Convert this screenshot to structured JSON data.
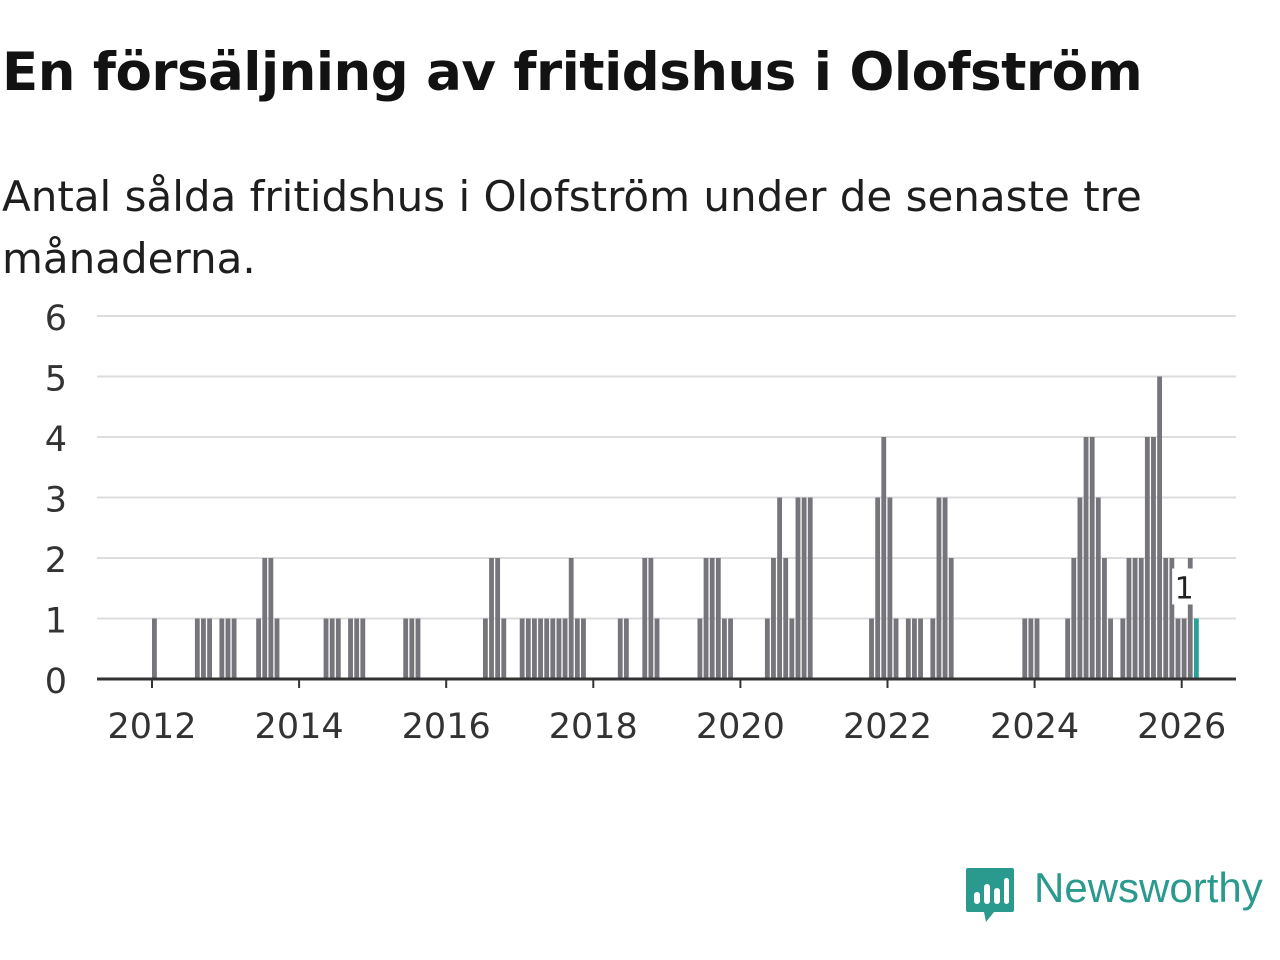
{
  "title": "En försäljning av fritidshus i Olofström",
  "subtitle": "Antal sålda fritidshus i Olofström under de senaste tre månaderna.",
  "brand": {
    "name": "Newsworthy",
    "color": "#2b9a8e",
    "icon": "newsworthy-logo-icon"
  },
  "colors": {
    "bar": "#76757c",
    "highlight": "#2aa198",
    "grid": "#dddddd",
    "axis": "#333333",
    "text": "#333333"
  },
  "chart_data": {
    "type": "bar",
    "title": "En försäljning av fritidshus i Olofström",
    "xlabel": "",
    "ylabel": "",
    "ylim": [
      0,
      6
    ],
    "yticks": [
      0,
      1,
      2,
      3,
      4,
      5,
      6
    ],
    "xticks": [
      "2012",
      "2014",
      "2016",
      "2018",
      "2020",
      "2022",
      "2024",
      "2026"
    ],
    "grid": true,
    "legend": "none",
    "x_unit": "month",
    "series": [
      {
        "name": "Sålda fritidshus",
        "start": "2011-01",
        "values": [
          0,
          0,
          0,
          0,
          0,
          0,
          0,
          0,
          0,
          0,
          0,
          0,
          1,
          0,
          0,
          0,
          0,
          0,
          0,
          1,
          1,
          1,
          0,
          1,
          1,
          1,
          0,
          0,
          0,
          1,
          2,
          2,
          1,
          0,
          0,
          0,
          0,
          0,
          0,
          0,
          1,
          1,
          1,
          0,
          1,
          1,
          1,
          0,
          0,
          0,
          0,
          0,
          0,
          1,
          1,
          1,
          0,
          0,
          0,
          0,
          0,
          0,
          0,
          0,
          0,
          0,
          1,
          2,
          2,
          1,
          0,
          0,
          1,
          1,
          1,
          1,
          1,
          1,
          1,
          1,
          2,
          1,
          1,
          0,
          0,
          0,
          0,
          0,
          1,
          1,
          0,
          0,
          2,
          2,
          1,
          0,
          0,
          0,
          0,
          0,
          0,
          1,
          2,
          2,
          2,
          1,
          1,
          0,
          0,
          0,
          0,
          0,
          1,
          2,
          3,
          2,
          1,
          3,
          3,
          3,
          0,
          0,
          0,
          0,
          0,
          0,
          0,
          0,
          0,
          1,
          3,
          4,
          3,
          1,
          0,
          1,
          1,
          1,
          0,
          1,
          3,
          3,
          2,
          0,
          0,
          0,
          0,
          0,
          0,
          0,
          0,
          0,
          0,
          0,
          1,
          1,
          1,
          0,
          0,
          0,
          0,
          1,
          2,
          3,
          4,
          4,
          3,
          2,
          1,
          0,
          1,
          2,
          2,
          2,
          4,
          4,
          5,
          2,
          2,
          1,
          1,
          2,
          1
        ],
        "highlight_last": true
      }
    ],
    "annotations": [
      {
        "target": "2026-01",
        "text": "1"
      }
    ]
  }
}
